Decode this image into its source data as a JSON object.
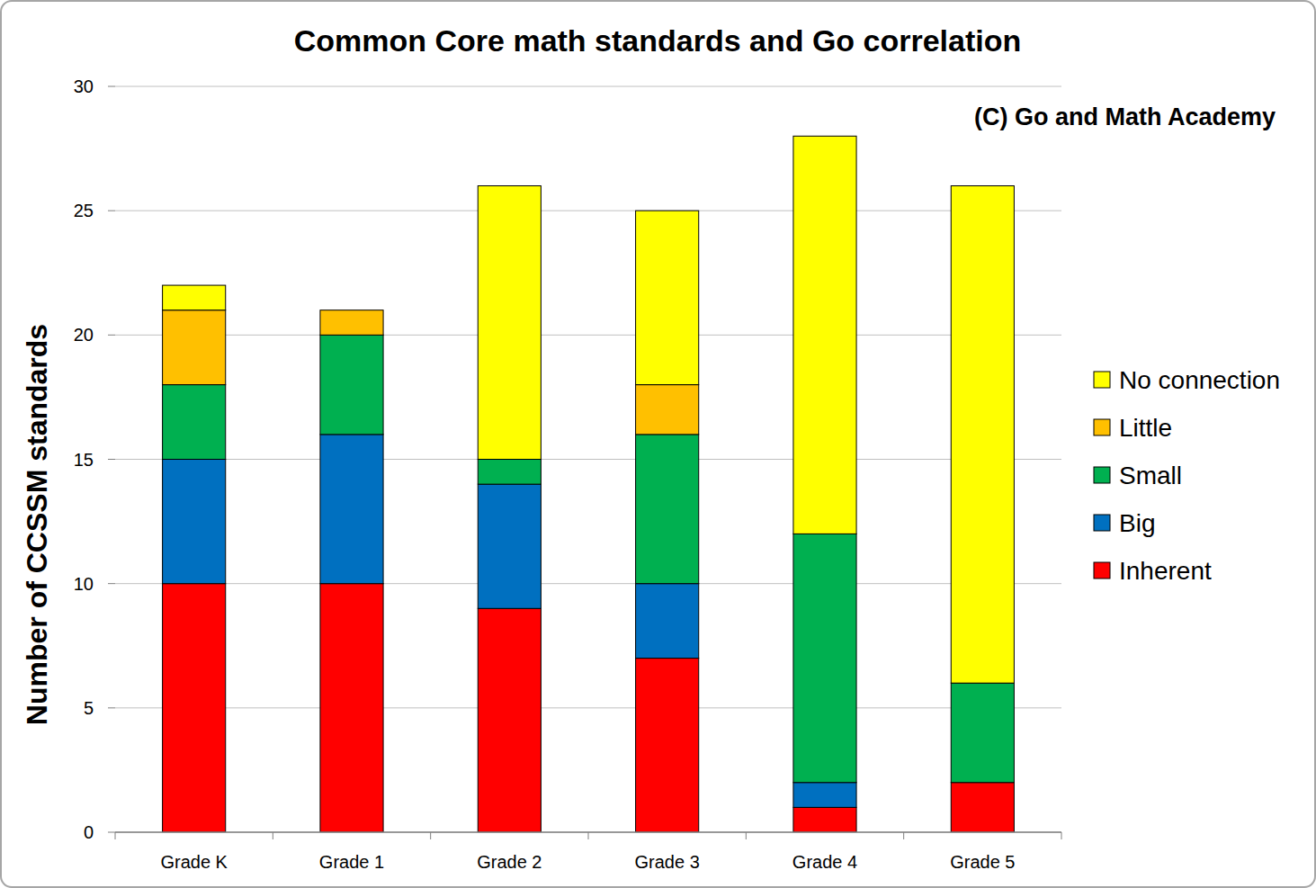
{
  "chart_data": {
    "type": "bar",
    "title": "Common Core math standards and Go correlation",
    "annotation": "(C) Go and Math Academy",
    "y_label": "Number of CCSSM standards",
    "categories": [
      "Grade K",
      "Grade 1",
      "Grade 2",
      "Grade 3",
      "Grade 4",
      "Grade 5"
    ],
    "series": [
      {
        "name": "Inherent",
        "color": "#ff0000",
        "values": [
          10,
          10,
          9,
          7,
          1,
          2
        ]
      },
      {
        "name": "Big",
        "color": "#0070c0",
        "values": [
          5,
          6,
          5,
          3,
          1,
          0
        ]
      },
      {
        "name": "Small",
        "color": "#00b050",
        "values": [
          3,
          4,
          1,
          6,
          10,
          4
        ]
      },
      {
        "name": "Little",
        "color": "#ffc000",
        "values": [
          3,
          1,
          0,
          2,
          0,
          0
        ]
      },
      {
        "name": "No connection",
        "color": "#ffff00",
        "values": [
          1,
          0,
          11,
          7,
          16,
          20
        ]
      }
    ],
    "stacked": true,
    "grid": true,
    "legend": "right",
    "ylim": [
      0,
      30
    ],
    "yticks": [
      0,
      5,
      10,
      15,
      20,
      25,
      30
    ]
  }
}
